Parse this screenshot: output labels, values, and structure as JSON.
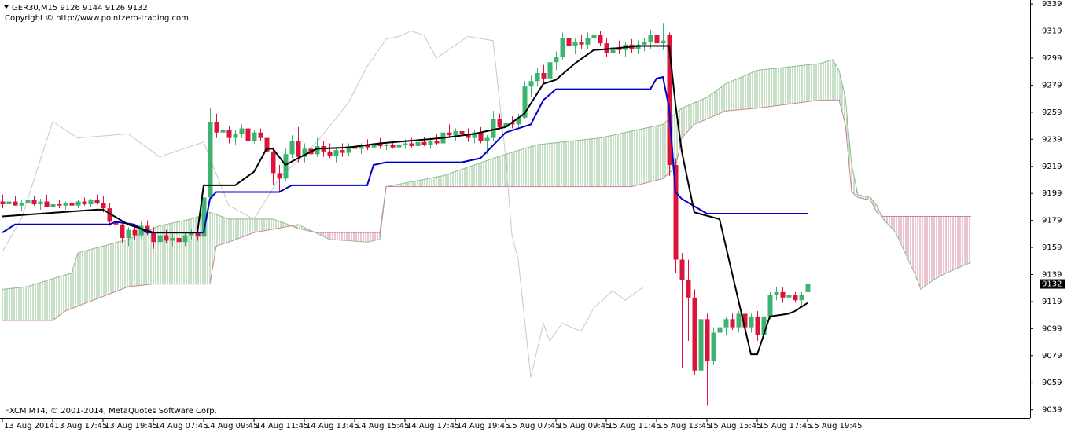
{
  "chart_data": {
    "type": "candlestick",
    "title": "GER30,M15  9126 9144 9126 9132",
    "subtitle": "Copyright © http://www.pointzero-trading.com",
    "footer": "FXCM MT4, © 2001-2014, MetaQuotes Software Corp.",
    "current_price": 9132,
    "xlim": [
      0,
      163
    ],
    "ylim": [
      9033,
      9342
    ],
    "yticks": [
      9339,
      9319,
      9299,
      9279,
      9259,
      9239,
      9219,
      9199,
      9179,
      9159,
      9139,
      9119,
      9099,
      9079,
      9059,
      9039
    ],
    "xticks": [
      {
        "value": 0,
        "label": "13 Aug 2014"
      },
      {
        "value": 8,
        "label": "13 Aug 17:45"
      },
      {
        "value": 16,
        "label": "13 Aug 19:45"
      },
      {
        "value": 24,
        "label": "14 Aug 07:45"
      },
      {
        "value": 32,
        "label": "14 Aug 09:45"
      },
      {
        "value": 40,
        "label": "14 Aug 11:45"
      },
      {
        "value": 48,
        "label": "14 Aug 13:45"
      },
      {
        "value": 56,
        "label": "14 Aug 15:45"
      },
      {
        "value": 64,
        "label": "14 Aug 17:45"
      },
      {
        "value": 72,
        "label": "14 Aug 19:45"
      },
      {
        "value": 80,
        "label": "15 Aug 07:45"
      },
      {
        "value": 88,
        "label": "15 Aug 09:45"
      },
      {
        "value": 96,
        "label": "15 Aug 11:45"
      },
      {
        "value": 104,
        "label": "15 Aug 13:45"
      },
      {
        "value": 112,
        "label": "15 Aug 15:45"
      },
      {
        "value": 120,
        "label": "15 Aug 17:45"
      },
      {
        "value": 128,
        "label": "15 Aug 19:45"
      }
    ],
    "up_color": "#3cb371",
    "down_color": "#dc143c",
    "ohlc": [
      [
        9193,
        9198,
        9188,
        9191
      ],
      [
        9191,
        9196,
        9187,
        9193
      ],
      [
        9193,
        9197,
        9190,
        9190
      ],
      [
        9190,
        9194,
        9186,
        9192
      ],
      [
        9192,
        9196,
        9189,
        9194
      ],
      [
        9194,
        9197,
        9190,
        9191
      ],
      [
        9191,
        9195,
        9187,
        9193
      ],
      [
        9193,
        9198,
        9190,
        9189
      ],
      [
        9189,
        9193,
        9186,
        9191
      ],
      [
        9191,
        9194,
        9188,
        9190
      ],
      [
        9190,
        9193,
        9187,
        9192
      ],
      [
        9192,
        9196,
        9189,
        9190
      ],
      [
        9190,
        9194,
        9188,
        9193
      ],
      [
        9193,
        9196,
        9190,
        9191
      ],
      [
        9191,
        9195,
        9189,
        9194
      ],
      [
        9194,
        9198,
        9191,
        9192
      ],
      [
        9192,
        9197,
        9185,
        9188
      ],
      [
        9188,
        9192,
        9175,
        9178
      ],
      [
        9178,
        9182,
        9170,
        9176
      ],
      [
        9176,
        9179,
        9162,
        9166
      ],
      [
        9166,
        9174,
        9160,
        9172
      ],
      [
        9172,
        9176,
        9165,
        9168
      ],
      [
        9168,
        9178,
        9166,
        9175
      ],
      [
        9175,
        9179,
        9168,
        9170
      ],
      [
        9170,
        9174,
        9158,
        9163
      ],
      [
        9163,
        9170,
        9160,
        9168
      ],
      [
        9168,
        9172,
        9162,
        9164
      ],
      [
        9164,
        9169,
        9160,
        9166
      ],
      [
        9166,
        9170,
        9161,
        9163
      ],
      [
        9163,
        9170,
        9160,
        9168
      ],
      [
        9168,
        9173,
        9165,
        9170
      ],
      [
        9170,
        9172,
        9164,
        9167
      ],
      [
        9167,
        9200,
        9166,
        9196
      ],
      [
        9196,
        9262,
        9195,
        9252
      ],
      [
        9252,
        9258,
        9240,
        9244
      ],
      [
        9244,
        9250,
        9238,
        9246
      ],
      [
        9246,
        9249,
        9236,
        9240
      ],
      [
        9240,
        9246,
        9235,
        9243
      ],
      [
        9243,
        9250,
        9240,
        9247
      ],
      [
        9247,
        9249,
        9236,
        9238
      ],
      [
        9238,
        9246,
        9236,
        9244
      ],
      [
        9244,
        9247,
        9238,
        9240
      ],
      [
        9240,
        9244,
        9226,
        9230
      ],
      [
        9230,
        9233,
        9205,
        9214
      ],
      [
        9214,
        9220,
        9200,
        9210
      ],
      [
        9210,
        9232,
        9208,
        9228
      ],
      [
        9228,
        9242,
        9225,
        9238
      ],
      [
        9238,
        9248,
        9222,
        9226
      ],
      [
        9226,
        9236,
        9222,
        9232
      ],
      [
        9232,
        9238,
        9224,
        9228
      ],
      [
        9228,
        9240,
        9226,
        9234
      ],
      [
        9234,
        9238,
        9226,
        9230
      ],
      [
        9230,
        9236,
        9225,
        9227
      ],
      [
        9227,
        9233,
        9222,
        9231
      ],
      [
        9231,
        9236,
        9226,
        9229
      ],
      [
        9229,
        9236,
        9227,
        9234
      ],
      [
        9234,
        9238,
        9230,
        9232
      ],
      [
        9232,
        9236,
        9228,
        9235
      ],
      [
        9235,
        9239,
        9231,
        9233
      ],
      [
        9233,
        9238,
        9230,
        9236
      ],
      [
        9236,
        9240,
        9232,
        9234
      ],
      [
        9234,
        9237,
        9231,
        9235
      ],
      [
        9235,
        9238,
        9232,
        9233
      ],
      [
        9233,
        9236,
        9230,
        9235
      ],
      [
        9235,
        9239,
        9232,
        9236
      ],
      [
        9236,
        9240,
        9233,
        9234
      ],
      [
        9234,
        9238,
        9231,
        9237
      ],
      [
        9237,
        9241,
        9234,
        9235
      ],
      [
        9235,
        9240,
        9232,
        9238
      ],
      [
        9238,
        9243,
        9235,
        9236
      ],
      [
        9236,
        9246,
        9234,
        9244
      ],
      [
        9244,
        9250,
        9240,
        9242
      ],
      [
        9242,
        9247,
        9238,
        9245
      ],
      [
        9245,
        9249,
        9241,
        9243
      ],
      [
        9243,
        9247,
        9237,
        9240
      ],
      [
        9240,
        9246,
        9236,
        9244
      ],
      [
        9244,
        9248,
        9236,
        9238
      ],
      [
        9238,
        9242,
        9228,
        9240
      ],
      [
        9240,
        9260,
        9238,
        9254
      ],
      [
        9254,
        9258,
        9246,
        9248
      ],
      [
        9248,
        9254,
        9244,
        9251
      ],
      [
        9251,
        9256,
        9247,
        9250
      ],
      [
        9250,
        9258,
        9248,
        9255
      ],
      [
        9255,
        9282,
        9254,
        9278
      ],
      [
        9278,
        9286,
        9270,
        9282
      ],
      [
        9282,
        9292,
        9278,
        9288
      ],
      [
        9288,
        9294,
        9280,
        9284
      ],
      [
        9284,
        9300,
        9282,
        9296
      ],
      [
        9296,
        9304,
        9290,
        9300
      ],
      [
        9300,
        9318,
        9298,
        9314
      ],
      [
        9314,
        9318,
        9304,
        9308
      ],
      [
        9308,
        9314,
        9302,
        9311
      ],
      [
        9311,
        9316,
        9306,
        9309
      ],
      [
        9309,
        9318,
        9306,
        9314
      ],
      [
        9314,
        9320,
        9310,
        9316
      ],
      [
        9316,
        9319,
        9308,
        9310
      ],
      [
        9310,
        9314,
        9300,
        9303
      ],
      [
        9303,
        9310,
        9298,
        9307
      ],
      [
        9307,
        9312,
        9302,
        9305
      ],
      [
        9305,
        9311,
        9300,
        9309
      ],
      [
        9309,
        9313,
        9303,
        9306
      ],
      [
        9306,
        9312,
        9302,
        9309
      ],
      [
        9309,
        9314,
        9304,
        9311
      ],
      [
        9311,
        9320,
        9306,
        9316
      ],
      [
        9316,
        9322,
        9306,
        9310
      ],
      [
        9310,
        9325,
        9305,
        9312
      ],
      [
        9316,
        9318,
        9212,
        9220
      ],
      [
        9220,
        9225,
        9140,
        9150
      ],
      [
        9150,
        9155,
        9070,
        9135
      ],
      [
        9135,
        9150,
        9090,
        9122
      ],
      [
        9122,
        9128,
        9065,
        9068
      ],
      [
        9068,
        9112,
        9052,
        9106
      ],
      [
        9106,
        9110,
        9042,
        9075
      ],
      [
        9075,
        9100,
        9072,
        9096
      ],
      [
        9096,
        9104,
        9090,
        9100
      ],
      [
        9100,
        9108,
        9094,
        9106
      ],
      [
        9106,
        9110,
        9098,
        9100
      ],
      [
        9100,
        9112,
        9096,
        9110
      ],
      [
        9110,
        9112,
        9098,
        9100
      ],
      [
        9100,
        9110,
        9096,
        9108
      ],
      [
        9108,
        9112,
        9090,
        9094
      ],
      [
        9094,
        9112,
        9092,
        9108
      ],
      [
        9108,
        9126,
        9106,
        9124
      ],
      [
        9124,
        9130,
        9120,
        9126
      ],
      [
        9126,
        9130,
        9118,
        9122
      ],
      [
        9122,
        9128,
        9118,
        9124
      ],
      [
        9124,
        9126,
        9118,
        9120
      ],
      [
        9120,
        9126,
        9116,
        9124
      ],
      [
        9126,
        9144,
        9126,
        9132
      ]
    ],
    "cloud": {
      "up_hatch": "#8fc08f",
      "down_hatch": "#d58a9c",
      "span_a": {
        "color": "#8fbc8f",
        "x": [
          0,
          4,
          8,
          11,
          12,
          20,
          25,
          30,
          33,
          36,
          43,
          46,
          47,
          52,
          58,
          60,
          61,
          70,
          80,
          85,
          95,
          105,
          108,
          112,
          115,
          120,
          130,
          132,
          133,
          134,
          135,
          136,
          138,
          139,
          140,
          142,
          145,
          146,
          148,
          150,
          154
        ],
        "values": [
          9128,
          9130,
          9136,
          9140,
          9155,
          9165,
          9175,
          9180,
          9185,
          9180,
          9180,
          9175,
          9176,
          9165,
          9163,
          9165,
          9204,
          9212,
          9228,
          9235,
          9240,
          9250,
          9262,
          9270,
          9280,
          9290,
          9295,
          9298,
          9290,
          9270,
          9220,
          9198,
          9196,
          9190,
          9180,
          9170,
          9140,
          9128,
          9135,
          9140,
          9148
        ]
      },
      "span_b": {
        "color": "#cd8596",
        "x": [
          0,
          8,
          10,
          20,
          24,
          33,
          34,
          36,
          40,
          46,
          47,
          50,
          60,
          61,
          100,
          105,
          107,
          108,
          110,
          115,
          120,
          125,
          130,
          133,
          134,
          135,
          136,
          138,
          139,
          140,
          154
        ],
        "values": [
          9105,
          9105,
          9112,
          9130,
          9132,
          9132,
          9160,
          9163,
          9170,
          9175,
          9173,
          9170,
          9170,
          9204,
          9204,
          9210,
          9218,
          9240,
          9250,
          9260,
          9262,
          9265,
          9268,
          9268,
          9250,
          9200,
          9196,
          9194,
          9185,
          9182,
          9182
        ]
      }
    },
    "lines": [
      {
        "color": "#c8c8c8",
        "x": [
          0,
          3,
          8,
          12,
          20,
          25,
          32,
          36,
          40,
          44,
          50,
          55,
          58,
          61,
          63,
          65,
          67,
          69,
          74,
          78,
          80,
          81,
          82,
          84,
          86,
          87,
          89,
          92,
          94,
          97,
          99,
          102
        ],
        "values": [
          9156,
          9180,
          9252,
          9240,
          9243,
          9226,
          9237,
          9190,
          9180,
          9210,
          9237,
          9266,
          9293,
          9313,
          9315,
          9319,
          9316,
          9299,
          9315,
          9312,
          9226,
          9168,
          9150,
          9063,
          9103,
          9090,
          9103,
          9097,
          9114,
          9127,
          9120,
          9130
        ]
      },
      {
        "color": "#0000cd",
        "x": [
          0,
          1,
          2,
          17,
          18,
          21,
          23,
          32,
          33,
          34,
          44,
          46,
          58,
          59,
          61,
          73,
          76,
          80,
          84,
          86,
          88,
          103,
          104,
          105,
          106,
          107,
          108,
          112,
          128
        ],
        "values": [
          9170,
          9173,
          9176,
          9176,
          9178,
          9176,
          9170,
          9170,
          9195,
          9200,
          9200,
          9205,
          9205,
          9220,
          9222,
          9222,
          9225,
          9244,
          9250,
          9268,
          9276,
          9276,
          9284,
          9285,
          9262,
          9200,
          9195,
          9184,
          9184
        ]
      },
      {
        "color": "#000000",
        "x": [
          0,
          15,
          16,
          20,
          24,
          31,
          32,
          37,
          40,
          42,
          43,
          45,
          47,
          50,
          55,
          60,
          65,
          70,
          75,
          80,
          83,
          86,
          88,
          91,
          94,
          97,
          101,
          106,
          107,
          108,
          110,
          114,
          119,
          120,
          122,
          125,
          126,
          128
        ],
        "values": [
          9182,
          9187,
          9187,
          9176,
          9170,
          9170,
          9205,
          9205,
          9215,
          9232,
          9232,
          9220,
          9225,
          9232,
          9233,
          9236,
          9238,
          9240,
          9243,
          9248,
          9258,
          9280,
          9283,
          9295,
          9305,
          9306,
          9308,
          9308,
          9265,
          9230,
          9185,
          9180,
          9080,
          9080,
          9108,
          9110,
          9112,
          9118
        ]
      }
    ]
  }
}
